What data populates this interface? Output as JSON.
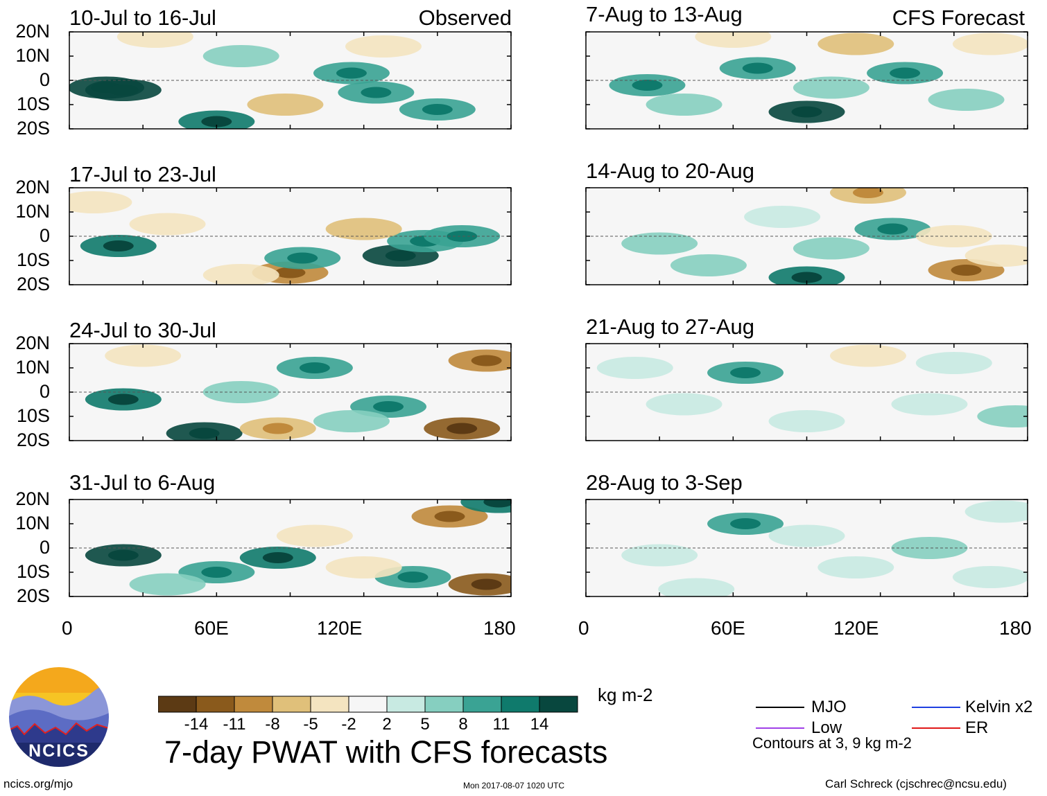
{
  "figure": {
    "main_title": "7-day PWAT with CFS forecasts",
    "left_column_label": "Observed",
    "right_column_label": "CFS Forecast",
    "units": "kg m-2",
    "site_url": "ncics.org/mjo",
    "timestamp": "Mon 2017-08-07 1020 UTC",
    "author": "Carl Schreck (cjschrec@ncsu.edu)",
    "logo_text": "NCICS",
    "contour_note": "Contours at 3, 9 kg m-2"
  },
  "legend": [
    {
      "label": "MJO",
      "color": "#000000"
    },
    {
      "label": "Kelvin x2",
      "color": "#1f3fe0"
    },
    {
      "label": "Low",
      "color": "#a040e8"
    },
    {
      "label": "ER",
      "color": "#e01818"
    }
  ],
  "colorbar": {
    "colors": [
      "#5c3a14",
      "#8a5a1c",
      "#c08a3c",
      "#e0c07a",
      "#f4e4c0",
      "#f6f6f6",
      "#c8eae2",
      "#86cfc0",
      "#3aa394",
      "#0f7a6c",
      "#08473e"
    ],
    "tick_labels": [
      "-14",
      "-11",
      "-8",
      "-5",
      "-2",
      "2",
      "5",
      "8",
      "11",
      "14"
    ]
  },
  "chart_data": [
    {
      "type": "heatmap",
      "column": "Observed",
      "period": "10-Jul to 16-Jul",
      "xlim": [
        0,
        180
      ],
      "ylim": [
        -20,
        20
      ],
      "xticks": [
        "0",
        "60E",
        "120E",
        "180"
      ],
      "yticks": [
        "20N",
        "10N",
        "0",
        "10S",
        "20S"
      ],
      "cells": [
        [
          15,
          -3,
          14
        ],
        [
          22,
          -4,
          16
        ],
        [
          60,
          -17,
          13
        ],
        [
          115,
          3,
          10
        ],
        [
          125,
          -5,
          9
        ],
        [
          88,
          -10,
          -6
        ],
        [
          35,
          18,
          -4
        ],
        [
          128,
          14,
          -5
        ],
        [
          150,
          -12,
          8
        ],
        [
          70,
          10,
          6
        ]
      ]
    },
    {
      "type": "heatmap",
      "column": "Observed",
      "period": "17-Jul to 23-Jul",
      "xlim": [
        0,
        180
      ],
      "ylim": [
        -20,
        20
      ],
      "xticks": [
        "0",
        "60E",
        "120E",
        "180"
      ],
      "yticks": [
        "20N",
        "10N",
        "0",
        "10S",
        "20S"
      ],
      "cells": [
        [
          20,
          -4,
          12
        ],
        [
          135,
          -8,
          14
        ],
        [
          145,
          -2,
          9
        ],
        [
          90,
          -15,
          -10
        ],
        [
          95,
          -9,
          10
        ],
        [
          40,
          5,
          -4
        ],
        [
          120,
          3,
          -7
        ],
        [
          160,
          0,
          8
        ],
        [
          70,
          -16,
          -5
        ],
        [
          10,
          14,
          -3
        ]
      ]
    },
    {
      "type": "heatmap",
      "column": "Observed",
      "period": "24-Jul to 30-Jul",
      "xlim": [
        0,
        180
      ],
      "ylim": [
        -20,
        20
      ],
      "xticks": [
        "0",
        "60E",
        "120E",
        "180"
      ],
      "yticks": [
        "20N",
        "10N",
        "0",
        "10S",
        "20S"
      ],
      "cells": [
        [
          22,
          -3,
          13
        ],
        [
          55,
          -17,
          14
        ],
        [
          170,
          13,
          -11
        ],
        [
          160,
          -15,
          -12
        ],
        [
          130,
          -6,
          9
        ],
        [
          85,
          -15,
          -8
        ],
        [
          100,
          10,
          8
        ],
        [
          70,
          0,
          7
        ],
        [
          30,
          15,
          -4
        ],
        [
          115,
          -12,
          6
        ]
      ]
    },
    {
      "type": "heatmap",
      "column": "Observed",
      "period": "31-Jul to 6-Aug",
      "xlim": [
        0,
        180
      ],
      "ylim": [
        -20,
        20
      ],
      "xticks": [
        "0",
        "60E",
        "120E",
        "180"
      ],
      "yticks": [
        "20N",
        "10N",
        "0",
        "10S",
        "20S"
      ],
      "cells": [
        [
          22,
          -3,
          14
        ],
        [
          85,
          -4,
          12
        ],
        [
          140,
          -12,
          10
        ],
        [
          170,
          -15,
          -12
        ],
        [
          155,
          13,
          -9
        ],
        [
          60,
          -10,
          8
        ],
        [
          100,
          5,
          -4
        ],
        [
          175,
          19,
          13
        ],
        [
          40,
          -15,
          6
        ],
        [
          120,
          -8,
          -5
        ]
      ]
    },
    {
      "type": "heatmap",
      "column": "CFS Forecast",
      "period": "7-Aug to 13-Aug",
      "xlim": [
        0,
        180
      ],
      "ylim": [
        -20,
        20
      ],
      "xticks": [
        "0",
        "60E",
        "120E",
        "180"
      ],
      "yticks": [
        "20N",
        "10N",
        "0",
        "10S",
        "20S"
      ],
      "cells": [
        [
          90,
          -13,
          14
        ],
        [
          25,
          -2,
          10
        ],
        [
          70,
          5,
          8
        ],
        [
          130,
          3,
          9
        ],
        [
          155,
          -8,
          7
        ],
        [
          110,
          15,
          -6
        ],
        [
          165,
          15,
          -5
        ],
        [
          40,
          -10,
          5
        ],
        [
          100,
          -3,
          6
        ],
        [
          60,
          18,
          -3
        ]
      ]
    },
    {
      "type": "heatmap",
      "column": "CFS Forecast",
      "period": "14-Aug to 20-Aug",
      "xlim": [
        0,
        180
      ],
      "ylim": [
        -20,
        20
      ],
      "xticks": [
        "0",
        "60E",
        "120E",
        "180"
      ],
      "yticks": [
        "20N",
        "10N",
        "0",
        "10S",
        "20S"
      ],
      "cells": [
        [
          90,
          -17,
          13
        ],
        [
          125,
          3,
          10
        ],
        [
          155,
          -14,
          -9
        ],
        [
          115,
          18,
          -8
        ],
        [
          170,
          -8,
          -4
        ],
        [
          50,
          -12,
          7
        ],
        [
          30,
          -3,
          5
        ],
        [
          150,
          0,
          -5
        ],
        [
          80,
          8,
          4
        ],
        [
          100,
          -5,
          5
        ]
      ]
    },
    {
      "type": "heatmap",
      "column": "CFS Forecast",
      "period": "21-Aug to 27-Aug",
      "xlim": [
        0,
        180
      ],
      "ylim": [
        -20,
        20
      ],
      "xticks": [
        "0",
        "60E",
        "120E",
        "180"
      ],
      "yticks": [
        "20N",
        "10N",
        "0",
        "10S",
        "20S"
      ],
      "cells": [
        [
          65,
          8,
          9
        ],
        [
          115,
          15,
          -4
        ],
        [
          140,
          -5,
          4
        ],
        [
          175,
          -10,
          5
        ],
        [
          40,
          -5,
          4
        ],
        [
          90,
          -12,
          4
        ],
        [
          20,
          10,
          3
        ],
        [
          150,
          12,
          3
        ]
      ]
    },
    {
      "type": "heatmap",
      "column": "CFS Forecast",
      "period": "28-Aug to 3-Sep",
      "xlim": [
        0,
        180
      ],
      "ylim": [
        -20,
        20
      ],
      "xticks": [
        "0",
        "60E",
        "120E",
        "180"
      ],
      "yticks": [
        "20N",
        "10N",
        "0",
        "10S",
        "20S"
      ],
      "cells": [
        [
          65,
          10,
          9
        ],
        [
          140,
          0,
          5
        ],
        [
          110,
          -8,
          4
        ],
        [
          165,
          -12,
          4
        ],
        [
          30,
          -3,
          4
        ],
        [
          90,
          5,
          3
        ],
        [
          170,
          15,
          3
        ],
        [
          45,
          -17,
          3
        ]
      ]
    }
  ]
}
